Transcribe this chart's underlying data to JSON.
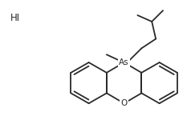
{
  "background_color": "#ffffff",
  "hi_label": "HI",
  "line_color": "#2a2a2a",
  "line_width": 1.3,
  "label_color": "#2a2a2a",
  "as_fontsize": 7.5,
  "o_fontsize": 7.5,
  "hi_fontsize": 8.5,
  "figsize": [
    2.43,
    1.65
  ],
  "dpi": 100,
  "as_label": "As",
  "o_label": "O"
}
